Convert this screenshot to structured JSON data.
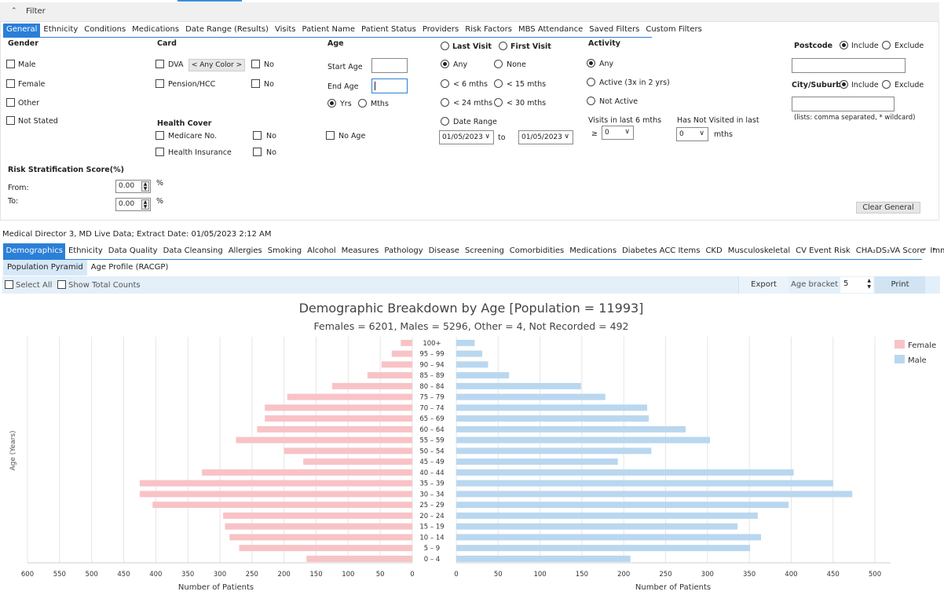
{
  "filter": {
    "title": "Filter",
    "tabs": [
      "General",
      "Ethnicity",
      "Conditions",
      "Medications",
      "Date Range (Results)",
      "Visits",
      "Patient Name",
      "Patient Status",
      "Providers",
      "Risk Factors",
      "MBS Attendance",
      "Saved Filters",
      "Custom Filters"
    ],
    "gender": {
      "title": "Gender",
      "options": [
        "Male",
        "Female",
        "Other",
        "Not Stated"
      ]
    },
    "card": {
      "title": "Card",
      "dva": "DVA",
      "any_color": "< Any Color >",
      "no": "No",
      "pension": "Pension/HCC"
    },
    "health_cover": {
      "title": "Health Cover",
      "medicare": "Medicare No.",
      "insurance": "Health Insurance",
      "no": "No"
    },
    "age": {
      "title": "Age",
      "start_label": "Start Age",
      "end_label": "End Age",
      "yrs": "Yrs",
      "mths": "Mths",
      "no_age": "No Age",
      "start_value": "",
      "end_value": ""
    },
    "visits": {
      "last_visit": "Last Visit",
      "first_visit": "First Visit",
      "any": "Any",
      "none": "None",
      "lt6": "< 6 mths",
      "lt15": "< 15 mths",
      "lt24": "< 24 mths",
      "lt30": "< 30 mths",
      "date_range": "Date Range",
      "from_date": "01/05/2023",
      "to": "to",
      "to_date": "01/05/2023"
    },
    "activity": {
      "title": "Activity",
      "any": "Any",
      "active": "Active (3x in 2 yrs)",
      "not_active": "Not Active",
      "visits_last6": "Visits in last 6 mths",
      "gte": "≥",
      "visits_value": "0",
      "not_visited": "Has Not Visited in last",
      "not_visited_value": "0",
      "mths": "mths"
    },
    "postcode": {
      "title": "Postcode",
      "include": "Include",
      "exclude": "Exclude",
      "value": ""
    },
    "city": {
      "title": "City/Suburb",
      "include": "Include",
      "exclude": "Exclude",
      "value": "",
      "hint": "(lists: comma separated, * wildcard)"
    },
    "risk": {
      "title": "Risk Stratification Score(%)",
      "from": "From:",
      "to": "To:",
      "from_value": "0.00",
      "to_value": "0.00",
      "pct": "%"
    },
    "clear_label": "Clear General"
  },
  "extract_info": "Medical Director 3, MD Live Data; Extract Date: 01/05/2023 2:12 AM",
  "report_tabs": [
    "Demographics",
    "Ethnicity",
    "Data Quality",
    "Data Cleansing",
    "Allergies",
    "Smoking",
    "Alcohol",
    "Measures",
    "Pathology",
    "Disease",
    "Screening",
    "Comorbidities",
    "Medications",
    "Diabetes ACC Items",
    "CKD",
    "Musculoskeletal",
    "CV Event Risk",
    "CHA₂DS₂VA Score",
    "Immunis"
  ],
  "sub_tabs": [
    "Population Pyramid",
    "Age Profile (RACGP)"
  ],
  "toolbar": {
    "select_all": "Select All",
    "show_total": "Show Total Counts",
    "export": "Export",
    "age_bracket_label": "Age bracket",
    "age_bracket_value": "5",
    "print": "Print"
  },
  "colors": {
    "female": "#f8c3c6",
    "male": "#b9d7ef",
    "accent": "#2b7fd8"
  },
  "chart_data": {
    "type": "bar",
    "orientation": "horizontal-pyramid",
    "title": "Demographic Breakdown by Age [Population = 11993]",
    "subtitle": "Females = 6201, Males = 5296, Other = 4, Not Recorded = 492",
    "ylabel": "Age (Years)",
    "xlabel": "Number of Patients",
    "categories": [
      "100+",
      "95 – 99",
      "90 – 94",
      "85 – 89",
      "80 – 84",
      "75 – 79",
      "70 – 74",
      "65 – 69",
      "60 – 64",
      "55 – 59",
      "50 – 54",
      "45 – 49",
      "40 – 44",
      "35 – 39",
      "30 – 34",
      "25 – 29",
      "20 – 24",
      "15 – 19",
      "10 – 14",
      "5 – 9",
      "0 – 4"
    ],
    "series": [
      {
        "name": "Female",
        "values": [
          18,
          32,
          48,
          70,
          125,
          195,
          230,
          230,
          242,
          275,
          200,
          170,
          328,
          425,
          425,
          405,
          295,
          292,
          285,
          270,
          165
        ]
      },
      {
        "name": "Male",
        "values": [
          22,
          31,
          38,
          63,
          149,
          178,
          228,
          230,
          274,
          303,
          233,
          193,
          403,
          450,
          473,
          397,
          360,
          336,
          364,
          351,
          208
        ]
      }
    ],
    "xticks": [
      0,
      50,
      100,
      150,
      200,
      250,
      300,
      350,
      400,
      450,
      500,
      550,
      600
    ],
    "left_xlim": [
      0,
      600
    ],
    "right_xlim": [
      0,
      500
    ],
    "legend": "top-right",
    "grid": true
  }
}
